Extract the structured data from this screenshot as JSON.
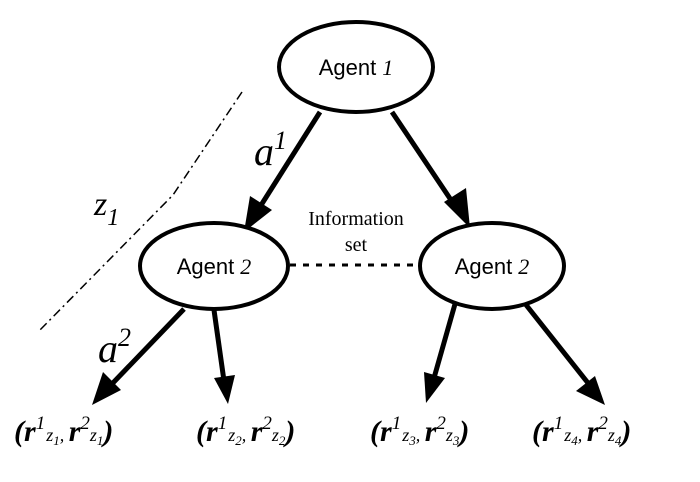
{
  "nodes": {
    "root": {
      "label": "Agent",
      "index": "1"
    },
    "left": {
      "label": "Agent",
      "index": "2"
    },
    "right": {
      "label": "Agent",
      "index": "2"
    }
  },
  "edge_labels": {
    "a1": {
      "base": "a",
      "sup": "1"
    },
    "a2": {
      "base": "a",
      "sup": "2"
    }
  },
  "history_label": {
    "base": "z",
    "sub": "1"
  },
  "information_set": {
    "line1": "Information",
    "line2": "set"
  },
  "payoffs": [
    {
      "open": "(",
      "r1": "r",
      "sup1": "1",
      "z1": "z",
      "sub1": "1",
      "sep": ", ",
      "r2": "r",
      "sup2": "2",
      "z2": "z",
      "sub2": "1",
      "close": ")"
    },
    {
      "open": "(",
      "r1": "r",
      "sup1": "1",
      "z1": "z",
      "sub1": "2",
      "sep": ", ",
      "r2": "r",
      "sup2": "2",
      "z2": "z",
      "sub2": "2",
      "close": ")"
    },
    {
      "open": "(",
      "r1": "r",
      "sup1": "1",
      "z1": "z",
      "sub1": "3",
      "sep": ", ",
      "r2": "r",
      "sup2": "2",
      "z2": "z",
      "sub2": "3",
      "close": ")"
    },
    {
      "open": "(",
      "r1": "r",
      "sup1": "1",
      "z1": "z",
      "sub1": "4",
      "sep": ", ",
      "r2": "r",
      "sup2": "2",
      "z2": "z",
      "sub2": "4",
      "close": ")"
    }
  ],
  "colors": {
    "stroke": "#000000",
    "background": "#ffffff"
  }
}
